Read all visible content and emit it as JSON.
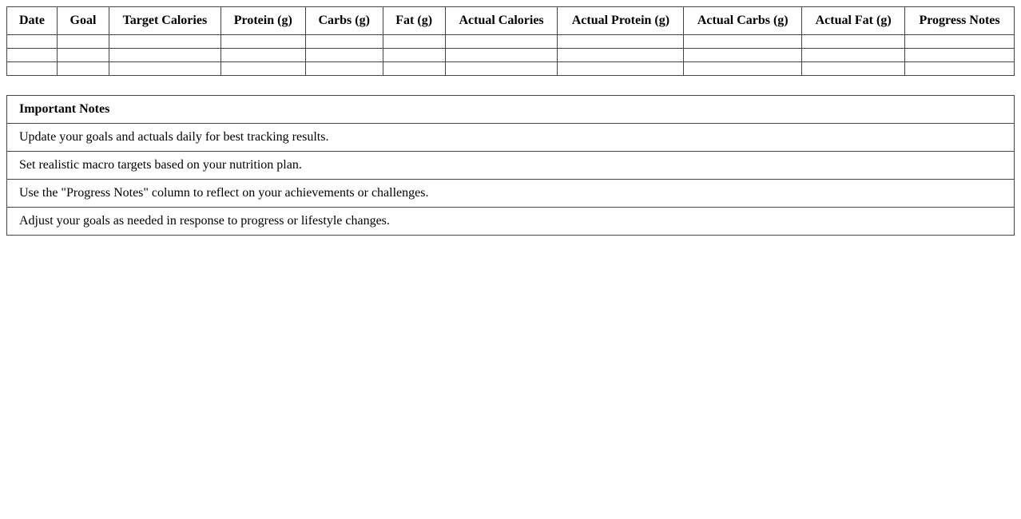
{
  "tracker": {
    "columns": [
      "Date",
      "Goal",
      "Target Calories",
      "Protein (g)",
      "Carbs (g)",
      "Fat (g)",
      "Actual Calories",
      "Actual Protein (g)",
      "Actual Carbs (g)",
      "Actual Fat (g)",
      "Progress Notes"
    ],
    "rows": [
      [
        "",
        "",
        "",
        "",
        "",
        "",
        "",
        "",
        "",
        "",
        ""
      ],
      [
        "",
        "",
        "",
        "",
        "",
        "",
        "",
        "",
        "",
        "",
        ""
      ],
      [
        "",
        "",
        "",
        "",
        "",
        "",
        "",
        "",
        "",
        "",
        ""
      ]
    ]
  },
  "notes": {
    "title": "Important Notes",
    "items": [
      "Update your goals and actuals daily for best tracking results.",
      "Set realistic macro targets based on your nutrition plan.",
      "Use the \"Progress Notes\" column to reflect on your achievements or challenges.",
      "Adjust your goals as needed in response to progress or lifestyle changes."
    ]
  }
}
